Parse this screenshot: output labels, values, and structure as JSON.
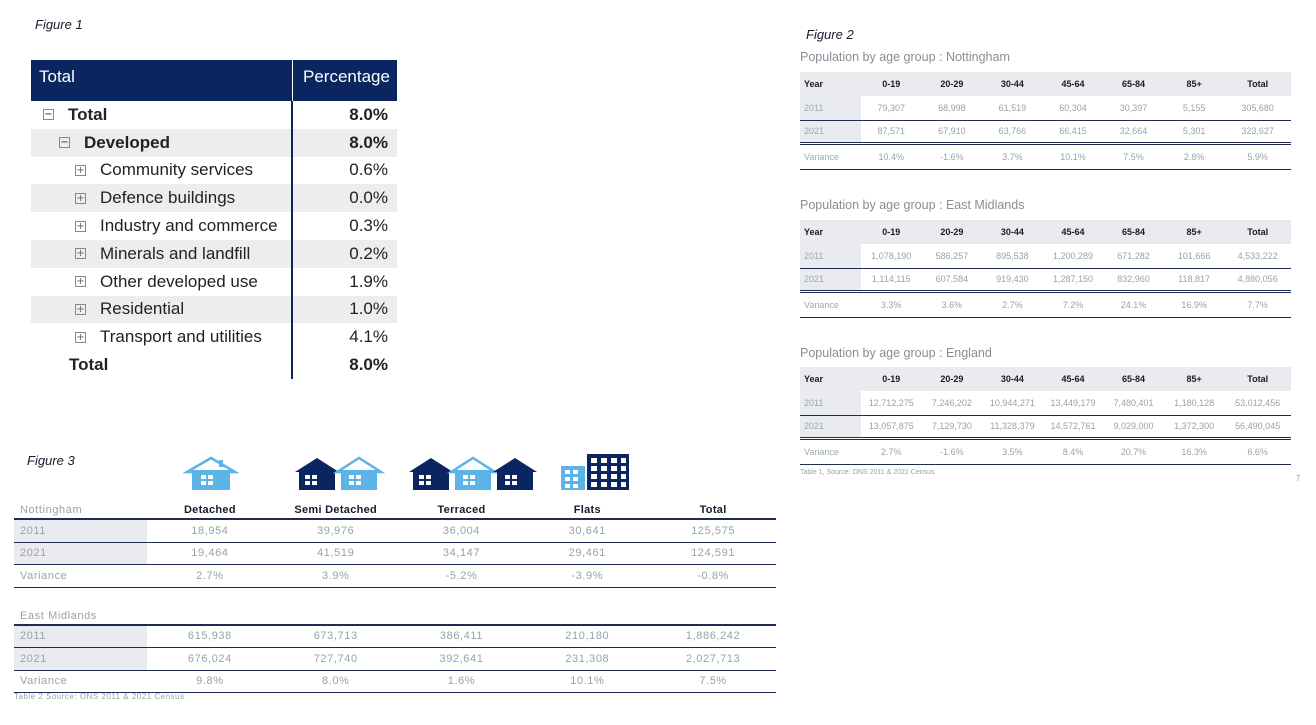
{
  "figure1": {
    "label": "Figure 1",
    "header": {
      "col1": "Total",
      "col2": "Percentage"
    },
    "rows": [
      {
        "toggle": "−",
        "label": "Total",
        "value": "8.0%",
        "level": 0,
        "bold": true,
        "shade": false
      },
      {
        "toggle": "−",
        "label": "Developed",
        "value": "8.0%",
        "level": 1,
        "bold": true,
        "shade": true
      },
      {
        "toggle": "+",
        "label": "Community services",
        "value": "0.6%",
        "level": 2,
        "bold": false,
        "shade": false
      },
      {
        "toggle": "+",
        "label": "Defence buildings",
        "value": "0.0%",
        "level": 2,
        "bold": false,
        "shade": true
      },
      {
        "toggle": "+",
        "label": "Industry and commerce",
        "value": "0.3%",
        "level": 2,
        "bold": false,
        "shade": false
      },
      {
        "toggle": "+",
        "label": "Minerals and landfill",
        "value": "0.2%",
        "level": 2,
        "bold": false,
        "shade": true
      },
      {
        "toggle": "+",
        "label": "Other developed use",
        "value": "1.9%",
        "level": 2,
        "bold": false,
        "shade": false
      },
      {
        "toggle": "+",
        "label": "Residential",
        "value": "1.0%",
        "level": 2,
        "bold": false,
        "shade": true
      },
      {
        "toggle": "+",
        "label": "Transport and utilities",
        "value": "4.1%",
        "level": 2,
        "bold": false,
        "shade": false
      },
      {
        "toggle": "",
        "label": "Total",
        "value": "8.0%",
        "level": 0,
        "bold": true,
        "shade": false
      }
    ]
  },
  "figure2": {
    "label": "Figure 2",
    "columns": [
      "Year",
      "0-19",
      "20-29",
      "30-44",
      "45-64",
      "65-84",
      "85+",
      "Total"
    ],
    "tables": [
      {
        "title": "Population by age group : Nottingham",
        "rows": [
          [
            "2011",
            "79,307",
            "68,998",
            "61,519",
            "60,304",
            "30,397",
            "5,155",
            "305,680"
          ],
          [
            "2021",
            "87,571",
            "67,910",
            "63,766",
            "66,415",
            "32,664",
            "5,301",
            "323,627"
          ],
          [
            "Variance",
            "10.4%",
            "-1.6%",
            "3.7%",
            "10.1%",
            "7.5%",
            "2.8%",
            "5.9%"
          ]
        ]
      },
      {
        "title": "Population by age group : East Midlands",
        "rows": [
          [
            "2011",
            "1,078,190",
            "586,257",
            "895,538",
            "1,200,289",
            "671,282",
            "101,666",
            "4,533,222"
          ],
          [
            "2021",
            "1,114,115",
            "607,584",
            "919,430",
            "1,287,150",
            "832,960",
            "118,817",
            "4,880,056"
          ],
          [
            "Variance",
            "3.3%",
            "3.6%",
            "2.7%",
            "7.2%",
            "24.1%",
            "16.9%",
            "7.7%"
          ]
        ]
      },
      {
        "title": "Population by age group : England",
        "rows": [
          [
            "2011",
            "12,712,275",
            "7,246,202",
            "10,944,271",
            "13,449,179",
            "7,480,401",
            "1,180,128",
            "53,012,456"
          ],
          [
            "2021",
            "13,057,875",
            "7,129,730",
            "11,328,379",
            "14,572,761",
            "9,029,000",
            "1,372,300",
            "56,490,045"
          ],
          [
            "Variance",
            "2.7%",
            "-1.6%",
            "3.5%",
            "8.4%",
            "20.7%",
            "16.3%",
            "6.6%"
          ]
        ]
      }
    ],
    "source": "Table 1, Source: ONS 2011 & 2021 Census",
    "page_number": "7"
  },
  "figure3": {
    "label": "Figure 3",
    "columns": [
      "Detached",
      "Semi Detached",
      "Terraced",
      "Flats",
      "Total"
    ],
    "icons": [
      "detached-house-icon",
      "semi-detached-house-icon",
      "terraced-house-icon",
      "flats-building-icon"
    ],
    "sections": [
      {
        "title": "Nottingham",
        "rows": [
          [
            "2011",
            "18,954",
            "39,976",
            "36,004",
            "30,641",
            "125,575"
          ],
          [
            "2021",
            "19,464",
            "41,519",
            "34,147",
            "29,461",
            "124,591"
          ],
          [
            "Variance",
            "2.7%",
            "3.9%",
            "-5.2%",
            "-3.9%",
            "-0.8%"
          ]
        ]
      },
      {
        "title": "East Midlands",
        "rows": [
          [
            "2011",
            "615,938",
            "673,713",
            "386,411",
            "210,180",
            "1,886,242"
          ],
          [
            "2021",
            "676,024",
            "727,740",
            "392,641",
            "231,308",
            "2,027,713"
          ],
          [
            "Variance",
            "9.8%",
            "8.0%",
            "1.6%",
            "10.1%",
            "7.5%"
          ]
        ]
      }
    ],
    "source": "Table 2 Source: ONS 2011 & 2021 Census"
  },
  "colors": {
    "navy": "#0a2560",
    "light_blue": "#5bb4e5",
    "shade": "#eceeed"
  }
}
